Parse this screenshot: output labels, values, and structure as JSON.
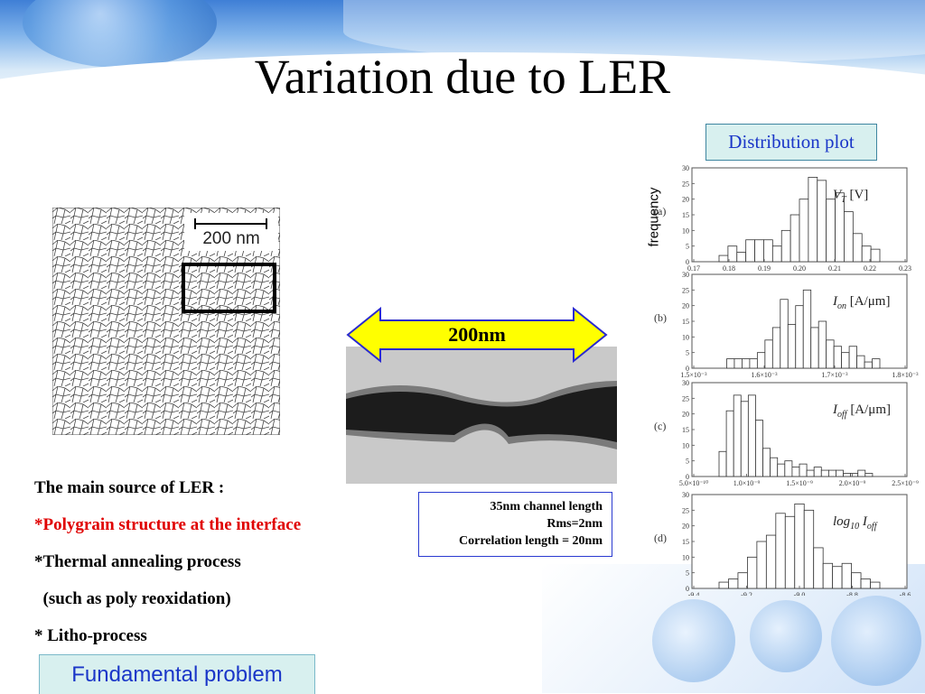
{
  "slide": {
    "title": "Variation due to LER",
    "distribution_label": "Distribution plot",
    "scale_bar_label": "200 nm",
    "arrow_label": "200nm",
    "info_box": [
      "35nm channel length",
      "Rms=2nm",
      "Correlation length = 20nm"
    ],
    "sources_heading": "The main source of LER :",
    "sources": [
      "*Polygrain structure at the interface",
      "*Thermal annealing process",
      "  (such as poly reoxidation)",
      "* Litho-process"
    ],
    "fundamental_label": "Fundamental problem",
    "frequency_label": "frequency"
  },
  "colors": {
    "accent_box_bg": "#d8f0ef",
    "accent_text": "#1a36c8",
    "highlight_red": "#e00000",
    "arrow_fill": "#ffff00"
  },
  "chart_data": [
    {
      "type": "bar",
      "panel": "(a)",
      "label_main": "V",
      "label_sub": "T",
      "label_unit": "[V]",
      "ylim": [
        0,
        30
      ],
      "yticks": [
        0,
        5,
        10,
        15,
        20,
        25,
        30
      ],
      "xlim": [
        0.17,
        0.23
      ],
      "xticks": [
        "0.17",
        "0.18",
        "0.19",
        "0.20",
        "0.21",
        "0.22",
        "0.23"
      ],
      "values": [
        2,
        5,
        3,
        7,
        7,
        7,
        5,
        10,
        15,
        20,
        27,
        26,
        20,
        22,
        16,
        9,
        5,
        4
      ]
    },
    {
      "type": "bar",
      "panel": "(b)",
      "label_main": "I",
      "label_sub": "on",
      "label_unit": "[A/μm]",
      "ylim": [
        0,
        30
      ],
      "yticks": [
        0,
        5,
        10,
        15,
        20,
        25,
        30
      ],
      "xticks": [
        "1.5×10⁻³",
        "1.6×10⁻³",
        "1.7×10⁻³",
        "1.8×10⁻³"
      ],
      "values": [
        0,
        3,
        3,
        3,
        3,
        5,
        9,
        13,
        22,
        14,
        20,
        25,
        13,
        15,
        9,
        7,
        5,
        7,
        4,
        2,
        3
      ]
    },
    {
      "type": "bar",
      "panel": "(c)",
      "label_main": "I",
      "label_sub": "off",
      "label_unit": "[A/μm]",
      "ylim": [
        0,
        30
      ],
      "yticks": [
        0,
        5,
        10,
        15,
        20,
        25,
        30
      ],
      "xticks": [
        "5.0×10⁻¹⁰",
        "1.0×10⁻⁹",
        "1.5×10⁻⁹",
        "2.0×10⁻⁹",
        "2.5×10⁻⁹"
      ],
      "values": [
        8,
        21,
        26,
        24,
        26,
        18,
        9,
        6,
        4,
        5,
        3,
        4,
        2,
        3,
        2,
        2,
        2,
        1,
        1,
        2,
        1,
        0
      ]
    },
    {
      "type": "bar",
      "panel": "(d)",
      "label_main": "log",
      "label_sub": "10",
      "label_unit": "I",
      "label_unit_sub": "off",
      "ylim": [
        0,
        30
      ],
      "yticks": [
        0,
        5,
        10,
        15,
        20,
        25,
        30
      ],
      "xlim": [
        -9.4,
        -8.6
      ],
      "xticks": [
        "-9.4",
        "-9.2",
        "-9.0",
        "-8.8",
        "-8.6"
      ],
      "values": [
        2,
        3,
        5,
        10,
        15,
        17,
        24,
        23,
        27,
        25,
        13,
        8,
        7,
        8,
        5,
        3,
        2
      ]
    }
  ]
}
